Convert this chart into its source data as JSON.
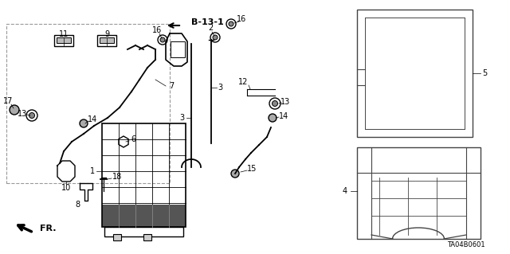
{
  "bg_color": "#ffffff",
  "line_color": "#000000",
  "diagram_code": "TA04B0601"
}
